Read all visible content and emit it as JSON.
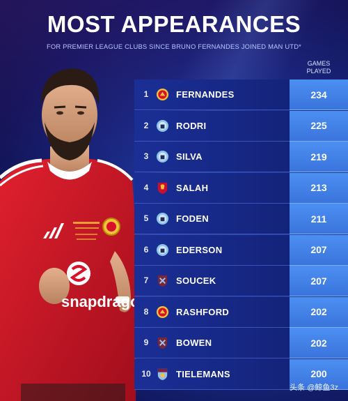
{
  "title": "MOST APPEARANCES",
  "subtitle": "FOR PREMIER LEAGUE CLUBS SINCE BRUNO FERNANDES JOINED MAN UTD*",
  "column_header": {
    "line1": "GAMES",
    "line2": "PLAYED"
  },
  "rows": [
    {
      "rank": "1",
      "name": "FERNANDES",
      "games": "234",
      "club_icon": "man-utd-crest-icon"
    },
    {
      "rank": "2",
      "name": "RODRI",
      "games": "225",
      "club_icon": "man-city-crest-icon"
    },
    {
      "rank": "3",
      "name": "SILVA",
      "games": "219",
      "club_icon": "man-city-crest-icon"
    },
    {
      "rank": "4",
      "name": "SALAH",
      "games": "213",
      "club_icon": "liverpool-crest-icon"
    },
    {
      "rank": "5",
      "name": "FODEN",
      "games": "211",
      "club_icon": "man-city-crest-icon"
    },
    {
      "rank": "6",
      "name": "EDERSON",
      "games": "207",
      "club_icon": "man-city-crest-icon"
    },
    {
      "rank": "7",
      "name": "SOUCEK",
      "games": "207",
      "club_icon": "west-ham-crest-icon"
    },
    {
      "rank": "8",
      "name": "RASHFORD",
      "games": "202",
      "club_icon": "man-utd-crest-icon"
    },
    {
      "rank": "9",
      "name": "BOWEN",
      "games": "202",
      "club_icon": "west-ham-crest-icon"
    },
    {
      "rank": "10",
      "name": "TIELEMANS",
      "games": "200",
      "club_icon": "aston-villa-crest-icon"
    }
  ],
  "shirt_sponsor": "snapdragon",
  "watermark": "头条 @鲸鱼3z",
  "colors": {
    "man_utd": "#d8102a",
    "man_city": "#8fc3ea",
    "liverpool": "#c8102e",
    "west_ham": "#7a263a",
    "aston_villa": "#95bfe5"
  }
}
